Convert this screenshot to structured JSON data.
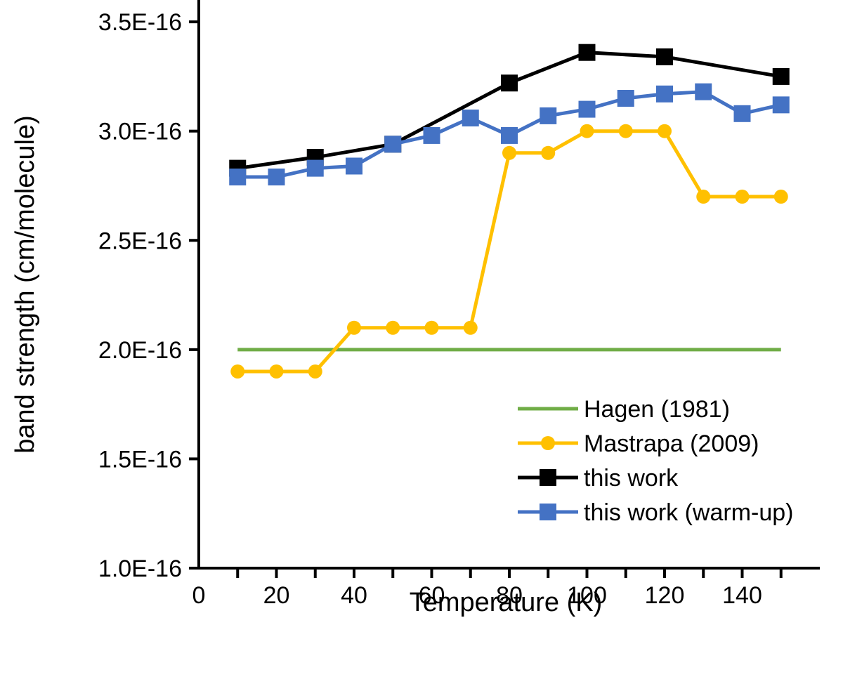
{
  "chart_data": {
    "type": "line",
    "title": "",
    "xlabel": "Temperature (K)",
    "ylabel": "band strength (cm/molecule)",
    "xlim": [
      0,
      160
    ],
    "ylim": [
      1e-16,
      3.6e-16
    ],
    "x_ticks": [
      0,
      20,
      40,
      60,
      80,
      100,
      120,
      140
    ],
    "x_tick_labels": [
      "0",
      "20",
      "40",
      "60",
      "80",
      "100",
      "120",
      "140"
    ],
    "y_ticks": [
      1e-16,
      1.5e-16,
      2e-16,
      2.5e-16,
      3e-16,
      3.5e-16
    ],
    "y_tick_labels": [
      "1.0E-16",
      "1.5E-16",
      "2.0E-16",
      "2.5E-16",
      "3.0E-16",
      "3.5E-16"
    ],
    "grid": false,
    "legend_position": "bottom-right",
    "series": [
      {
        "name": "Hagen (1981)",
        "color": "#70ad47",
        "marker": "none",
        "x": [
          10,
          150
        ],
        "y": [
          2e-16,
          2e-16
        ]
      },
      {
        "name": "Mastrapa (2009)",
        "color": "#ffc000",
        "marker": "circle",
        "x": [
          10,
          20,
          30,
          40,
          50,
          60,
          70,
          80,
          90,
          100,
          110,
          120,
          130,
          140,
          150
        ],
        "y": [
          1.9e-16,
          1.9e-16,
          1.9e-16,
          2.1e-16,
          2.1e-16,
          2.1e-16,
          2.1e-16,
          2.9e-16,
          2.9e-16,
          3e-16,
          3e-16,
          3e-16,
          2.7e-16,
          2.7e-16,
          2.7e-16
        ]
      },
      {
        "name": "this work",
        "color": "#000000",
        "marker": "square",
        "x": [
          10,
          30,
          50,
          80,
          100,
          120,
          150
        ],
        "y": [
          2.83e-16,
          2.88e-16,
          2.94e-16,
          3.22e-16,
          3.36e-16,
          3.34e-16,
          3.25e-16
        ]
      },
      {
        "name": "this work (warm-up)",
        "color": "#4472c4",
        "marker": "square",
        "x": [
          10,
          20,
          30,
          40,
          50,
          60,
          70,
          80,
          90,
          100,
          110,
          120,
          130,
          140,
          150
        ],
        "y": [
          2.79e-16,
          2.79e-16,
          2.83e-16,
          2.84e-16,
          2.94e-16,
          2.98e-16,
          3.06e-16,
          2.98e-16,
          3.07e-16,
          3.1e-16,
          3.15e-16,
          3.17e-16,
          3.18e-16,
          3.08e-16,
          3.12e-16
        ]
      }
    ]
  }
}
